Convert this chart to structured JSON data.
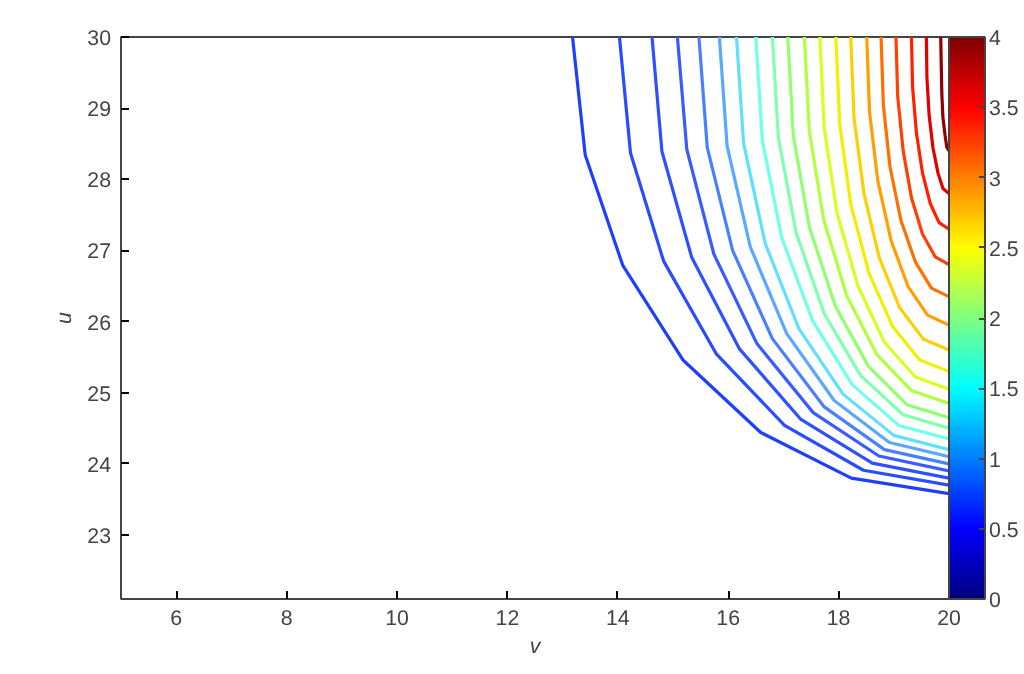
{
  "chart_data": {
    "type": "line",
    "xlabel": "v",
    "ylabel": "u",
    "xlim": [
      5,
      20
    ],
    "ylim": [
      22.1,
      30
    ],
    "xticks": [
      6,
      8,
      10,
      12,
      14,
      16,
      18,
      20
    ],
    "yticks": [
      23,
      24,
      25,
      26,
      27,
      28,
      29,
      30
    ],
    "grid": false,
    "clim": [
      0,
      4
    ],
    "cticks": [
      0,
      0.5,
      1,
      1.5,
      2,
      2.5,
      3,
      3.5,
      4
    ],
    "series": [
      {
        "color": "#1f3fff",
        "x": [
          13.18,
          13.41,
          14.09,
          15.18,
          16.59,
          18.23,
          20
        ],
        "values": [
          30,
          28.34,
          26.79,
          25.46,
          24.44,
          23.8,
          23.58
        ]
      },
      {
        "color": "#2a4cff",
        "x": [
          14.03,
          14.23,
          14.83,
          15.78,
          17.02,
          18.45,
          20
        ],
        "values": [
          30,
          28.37,
          26.85,
          25.55,
          24.54,
          23.91,
          23.7
        ]
      },
      {
        "color": "#3050ff",
        "x": [
          14.62,
          14.8,
          15.34,
          16.2,
          17.31,
          18.61,
          20
        ],
        "values": [
          30,
          28.39,
          26.9,
          25.62,
          24.63,
          24.01,
          23.8
        ]
      },
      {
        "color": "#3a5cff",
        "x": [
          15.08,
          15.25,
          15.74,
          16.52,
          17.54,
          18.73,
          20
        ],
        "values": [
          30,
          28.42,
          26.95,
          25.69,
          24.72,
          24.11,
          23.9
        ]
      },
      {
        "color": "#4a80ff",
        "x": [
          15.47,
          15.62,
          16.08,
          16.8,
          17.74,
          18.83,
          20
        ],
        "values": [
          30,
          28.45,
          27.0,
          25.76,
          24.8,
          24.2,
          24.0
        ]
      },
      {
        "color": "#5aa8ff",
        "x": [
          15.84,
          15.98,
          16.4,
          17.06,
          17.92,
          18.92,
          20
        ],
        "values": [
          30,
          28.47,
          27.05,
          25.83,
          24.89,
          24.3,
          24.1
        ]
      },
      {
        "color": "#60e0ff",
        "x": [
          16.15,
          16.28,
          16.67,
          17.28,
          18.08,
          19.0,
          20
        ],
        "values": [
          30,
          28.5,
          27.1,
          25.9,
          24.98,
          24.4,
          24.2
        ]
      },
      {
        "color": "#70ffe8",
        "x": [
          16.5,
          16.62,
          16.97,
          17.53,
          18.25,
          19.09,
          20
        ],
        "values": [
          30,
          28.54,
          27.18,
          26.01,
          25.11,
          24.54,
          24.35
        ]
      },
      {
        "color": "#80ffb0",
        "x": [
          16.8,
          16.91,
          17.23,
          17.74,
          18.4,
          19.17,
          20
        ],
        "values": [
          30,
          28.58,
          27.25,
          26.11,
          25.24,
          24.69,
          24.5
        ]
      },
      {
        "color": "#90ff70",
        "x": [
          17.08,
          17.18,
          17.47,
          17.94,
          18.54,
          19.24,
          20
        ],
        "values": [
          30,
          28.61,
          27.33,
          26.22,
          25.37,
          24.83,
          24.65
        ]
      },
      {
        "color": "#b0ff40",
        "x": [
          17.38,
          17.47,
          17.73,
          18.15,
          18.69,
          19.32,
          20
        ],
        "values": [
          30,
          28.67,
          27.43,
          26.36,
          25.54,
          25.03,
          24.85
        ]
      },
      {
        "color": "#d8ff20",
        "x": [
          17.66,
          17.74,
          17.97,
          18.35,
          18.83,
          19.39,
          20
        ],
        "values": [
          30,
          28.72,
          27.53,
          26.5,
          25.71,
          25.22,
          25.05
        ]
      },
      {
        "color": "#f0f000",
        "x": [
          17.95,
          18.02,
          18.22,
          18.55,
          18.98,
          19.47,
          20
        ],
        "values": [
          30,
          28.78,
          27.65,
          26.68,
          25.93,
          25.46,
          25.3
        ]
      },
      {
        "color": "#ffd000",
        "x": [
          18.22,
          18.28,
          18.46,
          18.74,
          19.11,
          19.54,
          20
        ],
        "values": [
          30,
          28.86,
          27.8,
          26.89,
          26.19,
          25.75,
          25.6
        ]
      },
      {
        "color": "#ffa000",
        "x": [
          18.51,
          18.56,
          18.71,
          18.95,
          19.26,
          19.61,
          20
        ],
        "values": [
          30,
          28.95,
          27.98,
          27.14,
          26.49,
          26.09,
          25.95
        ]
      },
      {
        "color": "#ff7000",
        "x": [
          18.77,
          18.81,
          18.93,
          19.13,
          19.39,
          19.68,
          20
        ],
        "values": [
          30,
          29.05,
          28.18,
          27.42,
          26.84,
          26.47,
          26.35
        ]
      },
      {
        "color": "#ff4000",
        "x": [
          19.04,
          19.07,
          19.17,
          19.32,
          19.52,
          19.75,
          20
        ],
        "values": [
          30,
          29.17,
          28.4,
          27.74,
          27.23,
          26.91,
          26.8
        ]
      },
      {
        "color": "#ff2000",
        "x": [
          19.32,
          19.34,
          19.41,
          19.52,
          19.66,
          19.82,
          20
        ],
        "values": [
          30,
          29.3,
          28.65,
          28.09,
          27.66,
          27.39,
          27.3
        ]
      },
      {
        "color": "#e00000",
        "x": [
          19.59,
          19.6,
          19.64,
          19.71,
          19.8,
          19.89,
          20
        ],
        "values": [
          30,
          29.43,
          28.9,
          28.44,
          28.09,
          27.87,
          27.8
        ]
      },
      {
        "color": "#900000",
        "x": [
          19.85,
          19.86,
          19.87,
          19.89,
          19.93,
          19.96,
          20
        ],
        "values": [
          30,
          29.59,
          29.2,
          28.87,
          28.61,
          28.45,
          28.4
        ]
      }
    ]
  }
}
